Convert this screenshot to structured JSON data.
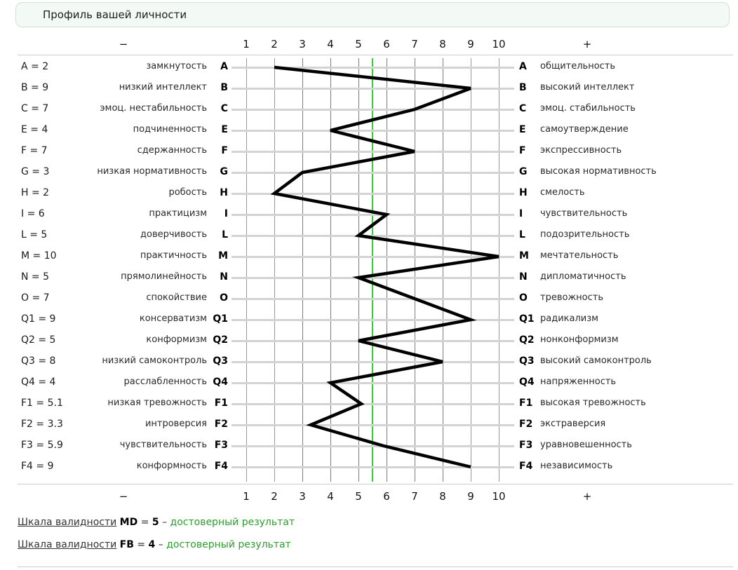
{
  "title": "Профиль вашей личности",
  "axis": {
    "minus": "−",
    "plus": "+",
    "ticks": [
      "1",
      "2",
      "3",
      "4",
      "5",
      "6",
      "7",
      "8",
      "9",
      "10"
    ],
    "min": 1,
    "max": 10,
    "midline": 5.5,
    "extreme_ticks": [
      1,
      2,
      9,
      10
    ]
  },
  "chart_data": {
    "type": "line",
    "orientation": "vertical-profile",
    "xlim": [
      1,
      10
    ],
    "grid": "on",
    "title": "Профиль вашей личности",
    "factors": [
      {
        "code": "A",
        "score": 2,
        "left": "замкнутость",
        "right": "общительность"
      },
      {
        "code": "B",
        "score": 9,
        "left": "низкий интеллект",
        "right": "высокий интеллект"
      },
      {
        "code": "C",
        "score": 7,
        "left": "эмоц. нестабильность",
        "right": "эмоц. стабильность"
      },
      {
        "code": "E",
        "score": 4,
        "left": "подчиненность",
        "right": "самоутверждение"
      },
      {
        "code": "F",
        "score": 7,
        "left": "сдержанность",
        "right": "экспрессивность"
      },
      {
        "code": "G",
        "score": 3,
        "left": "низкая нормативность",
        "right": "высокая нормативность"
      },
      {
        "code": "H",
        "score": 2,
        "left": "робость",
        "right": "смелость"
      },
      {
        "code": "I",
        "score": 6,
        "left": "практицизм",
        "right": "чувствительность"
      },
      {
        "code": "L",
        "score": 5,
        "left": "доверчивость",
        "right": "подозрительность"
      },
      {
        "code": "M",
        "score": 10,
        "left": "практичность",
        "right": "мечтательность"
      },
      {
        "code": "N",
        "score": 5,
        "left": "прямолинейность",
        "right": "дипломатичность"
      },
      {
        "code": "O",
        "score": 7,
        "left": "спокойствие",
        "right": "тревожность"
      },
      {
        "code": "Q1",
        "score": 9,
        "left": "консерватизм",
        "right": "радикализм"
      },
      {
        "code": "Q2",
        "score": 5,
        "left": "конформизм",
        "right": "нонконформизм"
      },
      {
        "code": "Q3",
        "score": 8,
        "left": "низкий самоконтроль",
        "right": "высокий самоконтроль"
      },
      {
        "code": "Q4",
        "score": 4,
        "left": "расслабленность",
        "right": "напряженность"
      },
      {
        "code": "F1",
        "score": 5.1,
        "left": "низкая тревожность",
        "right": "высокая тревожность"
      },
      {
        "code": "F2",
        "score": 3.3,
        "left": "интроверсия",
        "right": "экстраверсия"
      },
      {
        "code": "F3",
        "score": 5.9,
        "left": "чувствительность",
        "right": "уравновешенность"
      },
      {
        "code": "F4",
        "score": 9,
        "left": "конформность",
        "right": "независимость"
      }
    ]
  },
  "validity": [
    {
      "label": "Шкала валидности",
      "factor": "MD",
      "eq": "=",
      "value": "5",
      "dash": "–",
      "verdict": "достоверный результат"
    },
    {
      "label": "Шкала валидности",
      "factor": "FB",
      "eq": "=",
      "value": "4",
      "dash": "–",
      "verdict": "достоверный результат"
    }
  ],
  "colors": {
    "grid_extreme": "#e87c4f",
    "grid_normal": "#3fa63f",
    "grid_midline": "#2ed32e",
    "row_line": "#d3d3d3",
    "profile_line": "#000000",
    "verdict_green": "#2b9e2b",
    "title_box_bg": "#f3faf5",
    "title_box_border": "#cfe0d4"
  }
}
